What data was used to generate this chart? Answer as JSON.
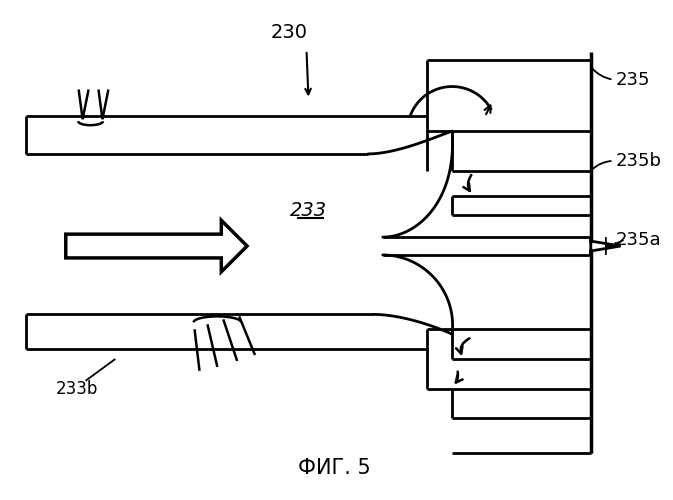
{
  "title": "ФИГ. 5",
  "label_230": "230",
  "label_233": "233",
  "label_233b": "233b",
  "label_235": "235",
  "label_235a": "235a",
  "label_235b": "235b",
  "bg_color": "#ffffff",
  "line_color": "#000000",
  "fig_width": 6.73,
  "fig_height": 5.0
}
